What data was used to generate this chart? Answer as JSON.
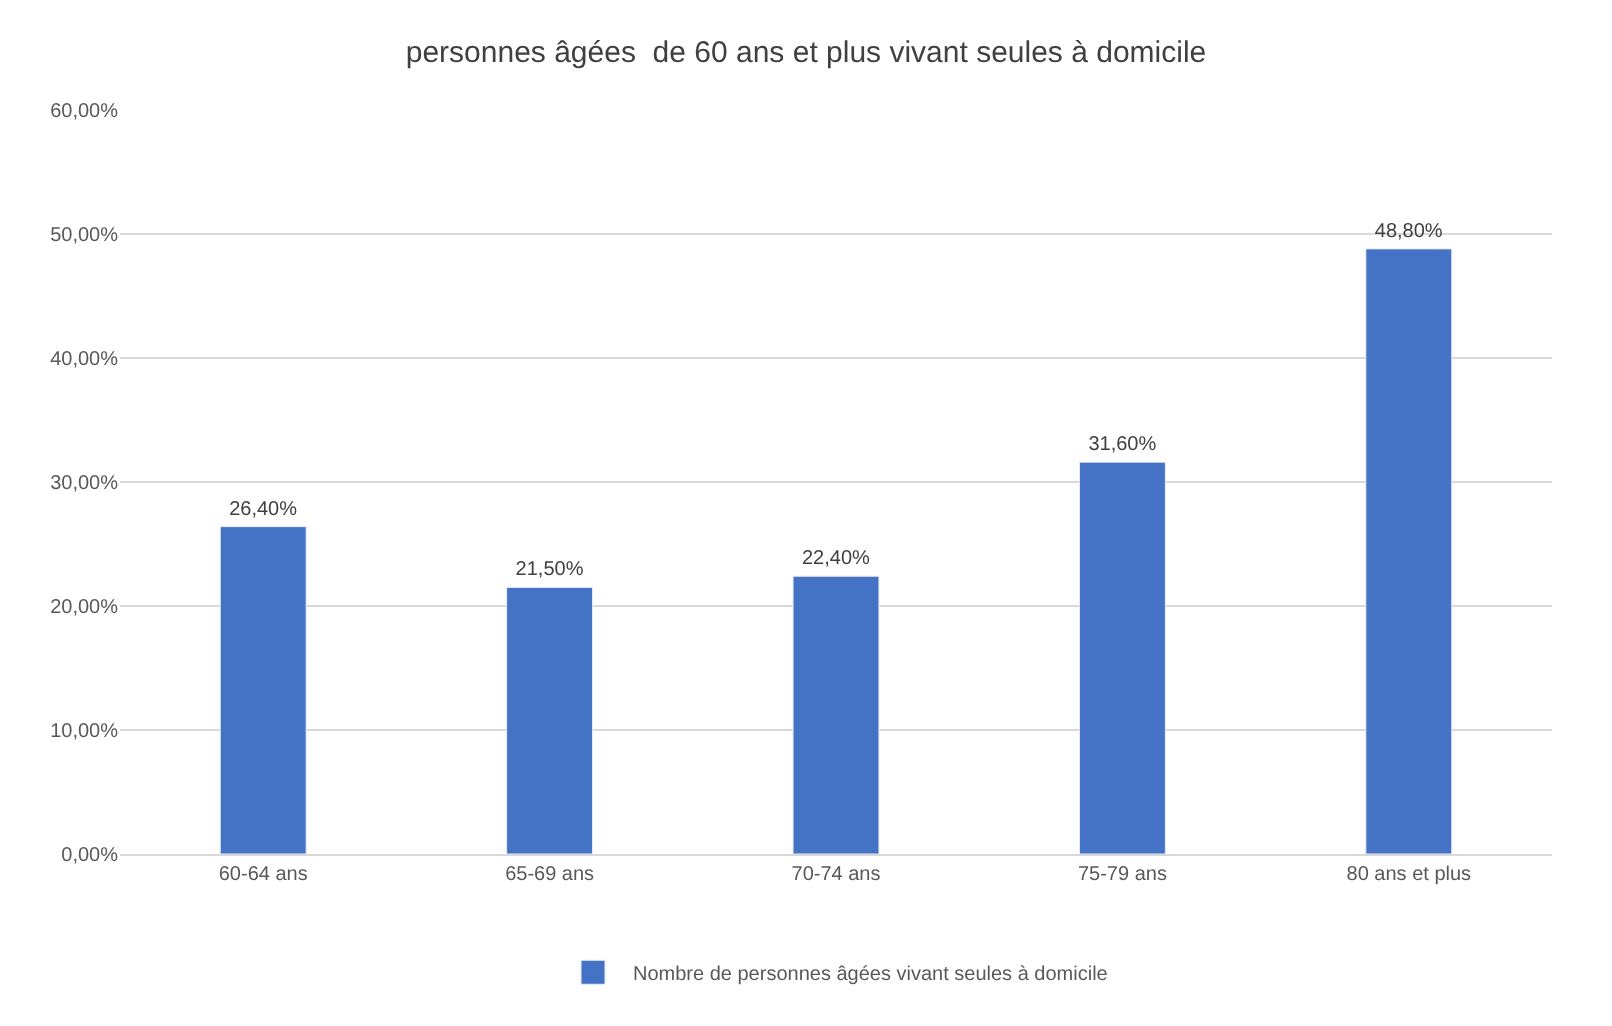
{
  "chart_data": {
    "type": "bar",
    "title": "personnes âgées  de 60 ans et plus vivant seules à domicile",
    "categories": [
      "60-64 ans",
      "65-69 ans",
      "70-74 ans",
      "75-79 ans",
      "80 ans et plus"
    ],
    "series": [
      {
        "name": "Nombre de personnes âgées vivant seules à domicile",
        "color": "#4472c4",
        "values": [
          26.4,
          21.5,
          22.4,
          31.6,
          48.8
        ],
        "value_labels": [
          "26,40%",
          "21,50%",
          "22,40%",
          "31,60%",
          "48,80%"
        ]
      }
    ],
    "ylim": [
      0,
      60
    ],
    "yticks": [
      {
        "value": 0,
        "label": "0,00%"
      },
      {
        "value": 10,
        "label": "10,00%"
      },
      {
        "value": 20,
        "label": "20,00%"
      },
      {
        "value": 30,
        "label": "30,00%"
      },
      {
        "value": 40,
        "label": "40,00%"
      },
      {
        "value": 50,
        "label": "50,00%"
      },
      {
        "value": 60,
        "label": "60,00%"
      }
    ],
    "grid": "y",
    "legend": "bottom"
  }
}
